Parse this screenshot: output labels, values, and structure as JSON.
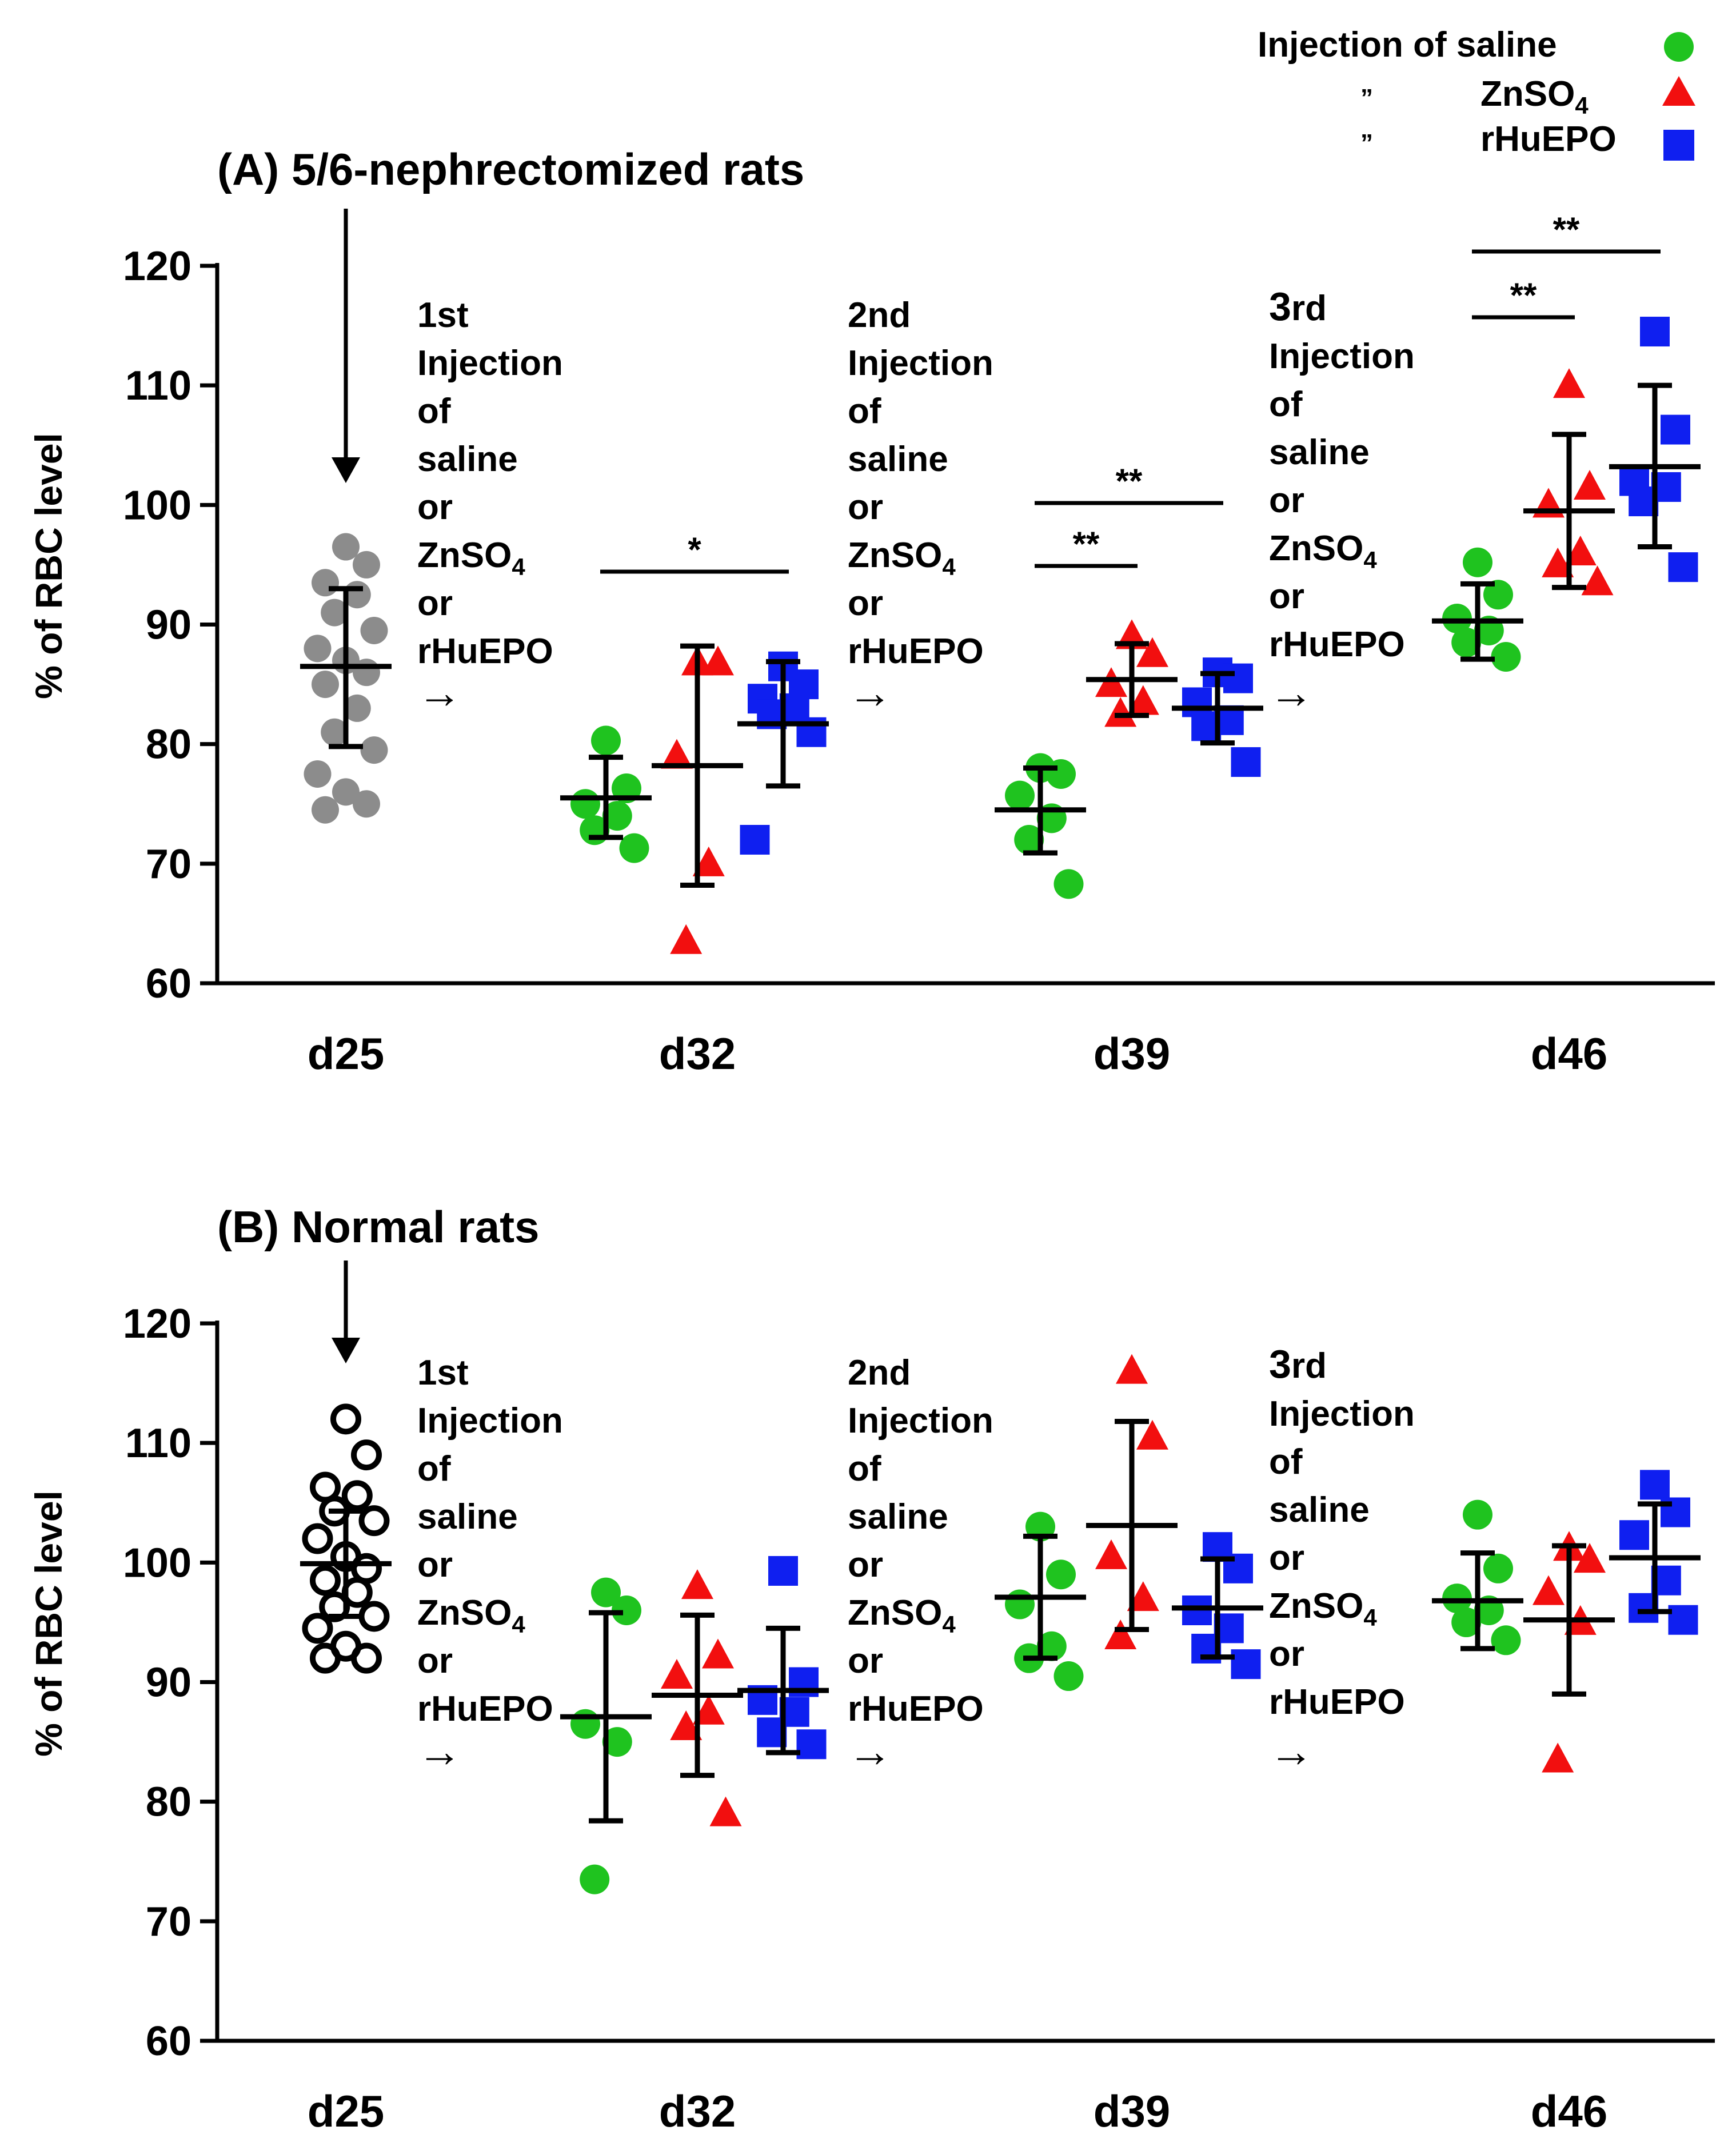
{
  "legend": {
    "title": "Injection of saline",
    "ditto": "”",
    "items": [
      {
        "key": "saline",
        "label": "saline",
        "shape": "circle",
        "color": "#1fc31f"
      },
      {
        "key": "znso4",
        "label": "ZnSO",
        "subscript": "4",
        "shape": "triangle",
        "color": "#f20f0f"
      },
      {
        "key": "rhuepo",
        "label": "rHuEPO",
        "shape": "square",
        "color": "#0f1ff0"
      }
    ]
  },
  "annotations": {
    "label_1st": "1st",
    "label_2nd": "2nd",
    "label_3rd_big": "3",
    "label_3rd_small": "rd",
    "lines": [
      "Injection",
      "of",
      "saline",
      "or",
      "ZnSO",
      "or",
      "rHuEPO"
    ],
    "subscript": "4",
    "arrow": "→"
  },
  "chart_data": [
    {
      "type": "scatter",
      "panel": "A",
      "title": "(A) 5/6-nephrectomized rats",
      "ylabel": "% of RBC level",
      "ylim": [
        60,
        120
      ],
      "yticks": [
        60,
        70,
        80,
        90,
        100,
        110,
        120
      ],
      "categories": [
        "d25",
        "d32",
        "d39",
        "d46"
      ],
      "baseline": {
        "name": "baseline",
        "color": "#8c8c8c",
        "filled": true,
        "values": [
          96.5,
          95,
          93.5,
          92.5,
          91,
          89.5,
          88,
          87,
          86,
          85,
          83,
          81,
          79.5,
          77.5,
          76,
          75,
          74.5
        ],
        "mean": 86.5,
        "sd_low": 79.8,
        "sd_high": 93
      },
      "series": [
        {
          "name": "saline",
          "color": "#1fc31f",
          "shape": "circle",
          "values": [
            [
              80.3,
              76.3,
              75,
              74,
              72.8,
              71.3
            ],
            [
              78,
              77.5,
              75.7,
              73.8,
              72,
              68.3
            ],
            [
              95.2,
              92.5,
              90.5,
              89.5,
              88.5,
              87.3
            ]
          ],
          "mean": [
            75.5,
            74.5,
            90.3
          ],
          "sd_low": [
            72.2,
            70.9,
            87.1
          ],
          "sd_high": [
            78.9,
            78,
            93.4
          ]
        },
        {
          "name": "ZnSO4",
          "color": "#f20f0f",
          "shape": "triangle",
          "values": [
            [
              86.8,
              86.8,
              79,
              70,
              63.5
            ],
            [
              89,
              87.5,
              85,
              83.5,
              82.5
            ],
            [
              110,
              101.5,
              100,
              96,
              95,
              93.5
            ]
          ],
          "mean": [
            78.2,
            85.4,
            99.5
          ],
          "sd_low": [
            68.2,
            82.4,
            93.1
          ],
          "sd_high": [
            88.2,
            88.4,
            105.9
          ]
        },
        {
          "name": "rHuEPO",
          "color": "#0f1ff0",
          "shape": "square",
          "values": [
            [
              86.5,
              85,
              83.8,
              83,
              82.5,
              81,
              72
            ],
            [
              86,
              85.5,
              83.5,
              82,
              81.5,
              78.5
            ],
            [
              114.5,
              106.3,
              102,
              101.5,
              100.3,
              94.8
            ]
          ],
          "mean": [
            81.7,
            83,
            103.2
          ],
          "sd_low": [
            76.5,
            80.1,
            96.5
          ],
          "sd_high": [
            86.9,
            85.9,
            110
          ]
        }
      ],
      "significance": [
        {
          "category": "d32",
          "label": "*",
          "from": "saline",
          "to": "rHuEPO"
        },
        {
          "category": "d39",
          "label": "**",
          "from": "saline",
          "to": "ZnSO4"
        },
        {
          "category": "d39",
          "label": "**",
          "from": "saline",
          "to": "rHuEPO"
        },
        {
          "category": "d46",
          "label": "**",
          "from": "saline",
          "to": "ZnSO4"
        },
        {
          "category": "d46",
          "label": "**",
          "from": "saline",
          "to": "rHuEPO"
        }
      ]
    },
    {
      "type": "scatter",
      "panel": "B",
      "title": "(B) Normal rats",
      "ylabel": "% of RBC level",
      "ylim": [
        60,
        120
      ],
      "yticks": [
        60,
        70,
        80,
        90,
        100,
        110,
        120
      ],
      "categories": [
        "d25",
        "d32",
        "d39",
        "d46"
      ],
      "baseline": {
        "name": "baseline",
        "color": "#000000",
        "filled": false,
        "values": [
          112,
          109,
          106.3,
          105.6,
          104.3,
          103.5,
          102,
          100.5,
          99.5,
          98.5,
          97.5,
          96.3,
          95.5,
          94.5,
          93,
          92,
          92
        ],
        "mean": 99.9,
        "sd_low": 95.5,
        "sd_high": 104.3
      },
      "series": [
        {
          "name": "saline",
          "color": "#1fc31f",
          "shape": "circle",
          "values": [
            [
              97.5,
              96,
              86.5,
              85,
              73.5
            ],
            [
              103,
              99,
              96.5,
              93,
              92,
              90.5
            ],
            [
              104,
              99.5,
              97,
              96,
              95,
              93.5
            ]
          ],
          "mean": [
            87.1,
            97.1,
            96.8
          ],
          "sd_low": [
            78.4,
            92,
            92.8
          ],
          "sd_high": [
            95.8,
            102.2,
            100.8
          ]
        },
        {
          "name": "ZnSO4",
          "color": "#f20f0f",
          "shape": "triangle",
          "values": [
            [
              98,
              92.2,
              90.5,
              87.5,
              86.2,
              79
            ],
            [
              116,
              110.5,
              100.5,
              97,
              93.8
            ],
            [
              101.2,
              100.2,
              97.5,
              95,
              83.5
            ]
          ],
          "mean": [
            88.9,
            103.1,
            95.2
          ],
          "sd_low": [
            82.2,
            94.4,
            89
          ],
          "sd_high": [
            95.6,
            111.8,
            101.4
          ]
        },
        {
          "name": "rHuEPO",
          "color": "#0f1ff0",
          "shape": "square",
          "values": [
            [
              99.3,
              90,
              88.5,
              87.5,
              85.8,
              84.8
            ],
            [
              101.3,
              99.5,
              96,
              94.5,
              92.8,
              91.5
            ],
            [
              106.5,
              104.2,
              102.3,
              98.5,
              96.2,
              95.2
            ]
          ],
          "mean": [
            89.3,
            96.2,
            100.4
          ],
          "sd_low": [
            84.1,
            92.1,
            95.9
          ],
          "sd_high": [
            94.5,
            100.3,
            104.9
          ]
        }
      ],
      "significance": []
    }
  ]
}
